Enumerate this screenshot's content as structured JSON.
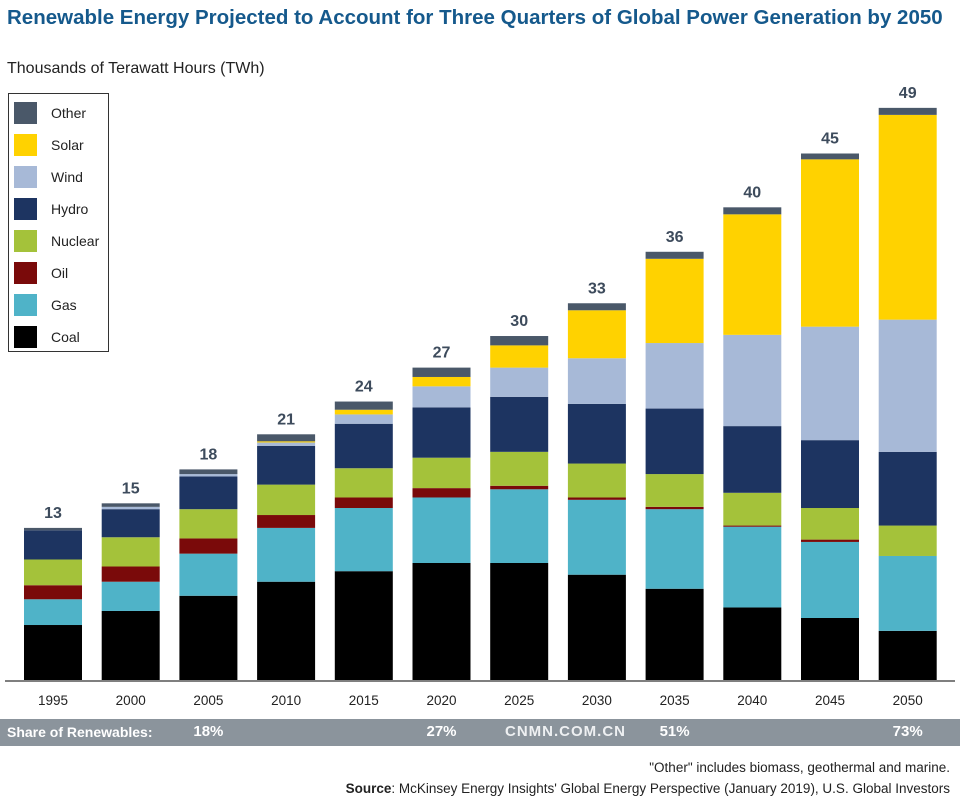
{
  "chart_data": {
    "type": "bar",
    "stacked": true,
    "title": "Renewable Energy Projected to Account for Three Quarters of Global Power Generation by 2050",
    "subtitle": "Thousands of Terawatt Hours (TWh)",
    "xlabel": "",
    "ylabel": "",
    "ylim": [
      0,
      50
    ],
    "grid": false,
    "legend_position": "top-left",
    "categories": [
      "1995",
      "2000",
      "2005",
      "2010",
      "2015",
      "2020",
      "2025",
      "2030",
      "2035",
      "2040",
      "2045",
      "2050"
    ],
    "totals": [
      13,
      15,
      18,
      21,
      24,
      27,
      30,
      33,
      36,
      40,
      45,
      49
    ],
    "series": [
      {
        "name": "Coal",
        "color": "#000000",
        "values": [
          4.7,
          5.9,
          7.2,
          8.4,
          9.3,
          10.0,
          10.0,
          9.0,
          7.8,
          6.2,
          5.3,
          4.2
        ]
      },
      {
        "name": "Gas",
        "color": "#4fb3c8",
        "values": [
          2.2,
          2.5,
          3.6,
          4.6,
          5.4,
          5.6,
          6.3,
          6.4,
          6.8,
          6.9,
          6.5,
          6.4
        ]
      },
      {
        "name": "Oil",
        "color": "#7a0a0a",
        "values": [
          1.2,
          1.3,
          1.3,
          1.1,
          0.9,
          0.8,
          0.3,
          0.2,
          0.2,
          0.1,
          0.2,
          0.0
        ]
      },
      {
        "name": "Nuclear",
        "color": "#a4c23a",
        "values": [
          2.2,
          2.5,
          2.5,
          2.6,
          2.5,
          2.6,
          2.9,
          2.9,
          2.8,
          2.8,
          2.7,
          2.6
        ]
      },
      {
        "name": "Hydro",
        "color": "#1d3461",
        "values": [
          2.5,
          2.4,
          2.8,
          3.3,
          3.8,
          4.3,
          4.7,
          5.1,
          5.6,
          5.7,
          5.8,
          6.3
        ]
      },
      {
        "name": "Wind",
        "color": "#a7b9d7",
        "values": [
          0.0,
          0.2,
          0.2,
          0.3,
          0.8,
          1.8,
          2.5,
          3.9,
          5.6,
          7.8,
          9.7,
          11.3
        ]
      },
      {
        "name": "Solar",
        "color": "#ffd200",
        "values": [
          0.0,
          0.0,
          0.0,
          0.1,
          0.4,
          0.8,
          1.9,
          4.1,
          7.2,
          10.3,
          14.3,
          17.5
        ]
      },
      {
        "name": "Other",
        "color": "#4a5869",
        "values": [
          0.2,
          0.3,
          0.4,
          0.6,
          0.7,
          0.8,
          0.8,
          0.6,
          0.6,
          0.6,
          0.5,
          0.6
        ]
      }
    ]
  },
  "legend_order": [
    "Other",
    "Solar",
    "Wind",
    "Hydro",
    "Nuclear",
    "Oil",
    "Gas",
    "Coal"
  ],
  "share": {
    "label": "Share of Renewables:",
    "values": [
      {
        "year": "2005",
        "text": "18%"
      },
      {
        "year": "2020",
        "text": "27%"
      },
      {
        "year": "2035",
        "text": "51%"
      },
      {
        "year": "2050",
        "text": "73%"
      }
    ]
  },
  "watermark": "CNMN.COM.CN",
  "footnote": "\"Other\" includes biomass, geothermal and marine.",
  "source": {
    "label": "Source",
    "text": ": McKinsey Energy Insights' Global Energy Perspective (January 2019), U.S. Global Investors"
  }
}
